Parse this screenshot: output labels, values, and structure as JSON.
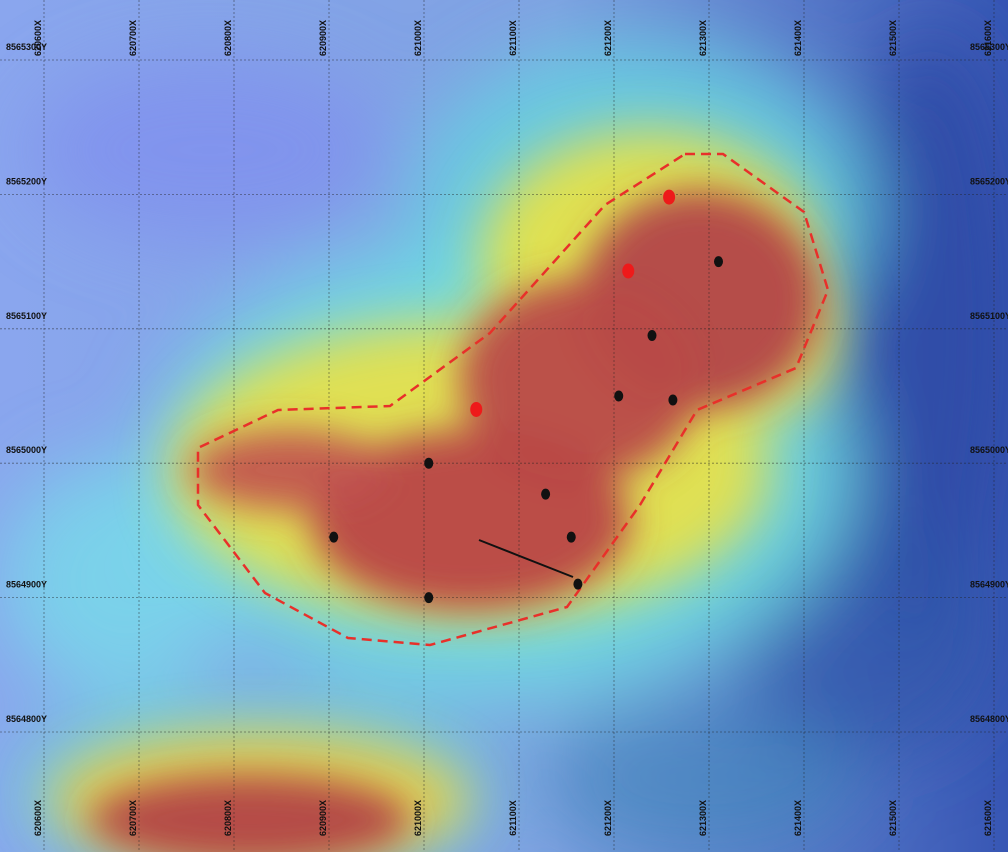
{
  "map": {
    "type": "heatmap-overlay",
    "grid_easting_labels": [
      "620600X",
      "620700X",
      "620800X",
      "620900X",
      "621000X",
      "621100X",
      "621200X",
      "621300X",
      "621400X",
      "621500X",
      "621600X"
    ],
    "grid_northing_labels": [
      "8565300Y",
      "8565200Y",
      "8565100Y",
      "8565000Y",
      "8564900Y",
      "8564800Y"
    ],
    "grid": true,
    "colors": {
      "low": "#5a8fd6",
      "cold": "#2a4fa8",
      "mid": "#6ed8e4",
      "warm": "#e8e04a",
      "high": "#b84446",
      "boundary": "#e8302a",
      "sample_black": "#111111",
      "sample_red": "#ee1a1a"
    },
    "boundary_line": "dashed",
    "samples_black": [
      {
        "e": 621310,
        "n": 8565150
      },
      {
        "e": 621240,
        "n": 8565095
      },
      {
        "e": 621205,
        "n": 8565050
      },
      {
        "e": 621262,
        "n": 8565047
      },
      {
        "e": 621005,
        "n": 8565000
      },
      {
        "e": 621128,
        "n": 8564977
      },
      {
        "e": 621155,
        "n": 8564945
      },
      {
        "e": 620905,
        "n": 8564945
      },
      {
        "e": 621162,
        "n": 8564910
      },
      {
        "e": 621005,
        "n": 8564900
      }
    ],
    "samples_red": [
      {
        "e": 621258,
        "n": 8565198
      },
      {
        "e": 621215,
        "n": 8565143
      },
      {
        "e": 621055,
        "n": 8565040
      }
    ]
  }
}
